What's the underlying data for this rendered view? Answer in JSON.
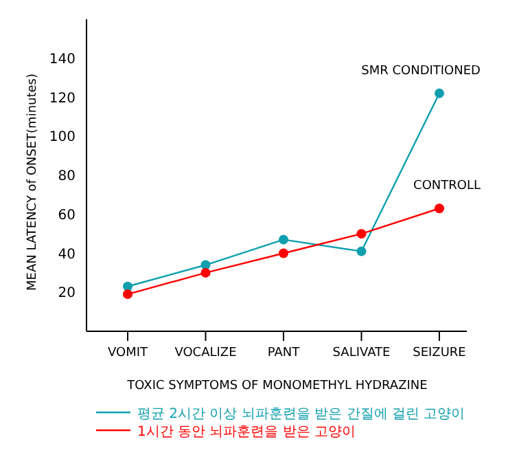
{
  "chart_data": {
    "type": "line",
    "xlabel": "TOXIC SYMPTOMS OF MONOMETHYL HYDRAZINE",
    "ylabel": "MEAN LATENCY of ONSET(minutes)",
    "categories": [
      "VOMIT",
      "VOCALIZE",
      "PANT",
      "SALIVATE",
      "SEIZURE"
    ],
    "series": [
      {
        "name": "평균 2시간 이상 뇌파훈련을 받은 간질에 걸린 고양이",
        "color": "#0f9fae",
        "values": [
          23,
          34,
          47,
          41,
          122
        ]
      },
      {
        "name": "1시간 동안 뇌파훈련을 받은 고양이",
        "color": "#ff0000",
        "values": [
          19,
          30,
          40,
          50,
          63
        ]
      }
    ],
    "annotations": [
      {
        "text": "SMR CONDITIONED",
        "x": "SEIZURE",
        "y": 122
      },
      {
        "text": "CONTROLL",
        "x": "SEIZURE",
        "y": 63
      }
    ],
    "ylim": [
      0,
      160
    ],
    "yticks": [
      20,
      40,
      60,
      80,
      100,
      120,
      140
    ],
    "marker": "circle",
    "legend": "bottom",
    "grid": false
  }
}
